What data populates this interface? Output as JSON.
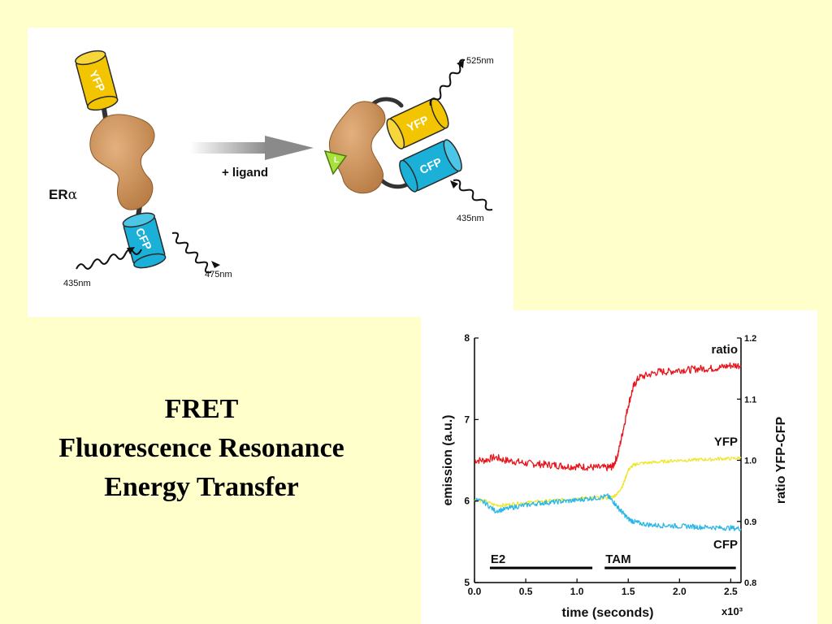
{
  "title": {
    "line1": "FRET",
    "line2": "Fluorescence Resonance",
    "line3": "Energy Transfer"
  },
  "diagram": {
    "receptor_label_text": "ER",
    "receptor_label_symbol": "α",
    "unbound": {
      "top_protein": "YFP",
      "bottom_protein": "CFP",
      "excitation": "435nm",
      "emission": "475nm"
    },
    "arrow_label": "+ ligand",
    "bound": {
      "ligand": "L",
      "top_protein": "YFP",
      "bottom_protein": "CFP",
      "excitation": "435nm",
      "emission": "525nm"
    },
    "colors": {
      "yfp": "#f2c500",
      "cfp": "#1ab0d8",
      "receptor": "#c98c55",
      "ligand": "#a8e03c"
    }
  },
  "chart_data": {
    "type": "line",
    "x": [
      0,
      0.1,
      0.2,
      0.3,
      0.4,
      0.5,
      0.6,
      0.7,
      0.8,
      0.9,
      1.0,
      1.1,
      1.2,
      1.3,
      1.35,
      1.4,
      1.45,
      1.5,
      1.55,
      1.6,
      1.7,
      1.8,
      1.9,
      2.0,
      2.1,
      2.2,
      2.3,
      2.4,
      2.5,
      2.6
    ],
    "xlabel": "time (seconds)",
    "x_multiplier": "x10³",
    "xlim": [
      0,
      2.6
    ],
    "x_ticks": [
      0.0,
      0.5,
      1.0,
      1.5,
      2.0,
      2.5
    ],
    "x_tick_labels": [
      "0.0",
      "0.5",
      "1.0",
      "1.5",
      "2.0",
      "2.5"
    ],
    "ylabel": "emission (a.u.)",
    "ylim": [
      5,
      8
    ],
    "y_ticks": [
      5,
      6,
      7,
      8
    ],
    "y_tick_labels": [
      "5",
      "6",
      "7",
      "8"
    ],
    "y2label": "ratio YFP-CFP",
    "y2lim": [
      0.8,
      1.2
    ],
    "y2_ticks": [
      0.8,
      0.9,
      1.0,
      1.1,
      1.2
    ],
    "y2_tick_labels": [
      "0.8",
      "0.9",
      "1.0",
      "1.1",
      "1.2"
    ],
    "grid": false,
    "series": [
      {
        "name": "ratio",
        "axis": "right",
        "color": "#e8141c",
        "values": [
          1.0,
          1.0,
          1.005,
          1.0,
          0.998,
          0.995,
          0.994,
          0.993,
          0.992,
          0.99,
          0.99,
          0.989,
          0.988,
          0.988,
          0.99,
          1.01,
          1.05,
          1.09,
          1.12,
          1.135,
          1.14,
          1.145,
          1.145,
          1.148,
          1.148,
          1.15,
          1.15,
          1.152,
          1.155,
          1.155
        ]
      },
      {
        "name": "YFP",
        "axis": "left",
        "color": "#f0e62a",
        "values": [
          6.02,
          6.0,
          5.95,
          5.95,
          5.97,
          5.98,
          5.99,
          6.0,
          6.01,
          6.02,
          6.03,
          6.04,
          6.04,
          6.04,
          6.05,
          6.1,
          6.2,
          6.38,
          6.44,
          6.46,
          6.47,
          6.48,
          6.49,
          6.5,
          6.5,
          6.51,
          6.51,
          6.52,
          6.52,
          6.53
        ]
      },
      {
        "name": "CFP",
        "axis": "left",
        "color": "#29b6e8",
        "values": [
          6.02,
          5.98,
          5.88,
          5.9,
          5.93,
          5.95,
          5.97,
          5.98,
          5.99,
          6.0,
          6.01,
          6.03,
          6.04,
          6.06,
          6.0,
          5.92,
          5.85,
          5.78,
          5.75,
          5.73,
          5.71,
          5.7,
          5.7,
          5.69,
          5.69,
          5.68,
          5.68,
          5.67,
          5.67,
          5.66
        ]
      }
    ],
    "treatments": [
      {
        "label": "E2",
        "start": 0.15,
        "end": 1.15
      },
      {
        "label": "TAM",
        "start": 1.27,
        "end": 2.55
      }
    ]
  }
}
